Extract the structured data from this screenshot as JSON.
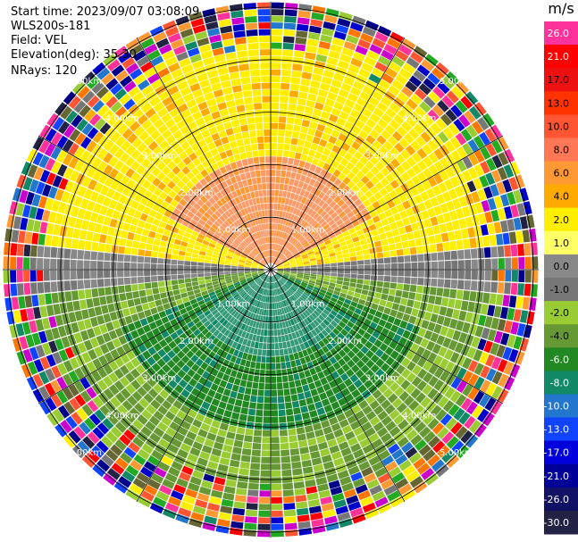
{
  "header": {
    "start_time": "Start time: 2023/09/07 03:08:09",
    "station": "WLS200s-181",
    "field": "Field: VEL",
    "elevation": "Elevation(deg): 35.30",
    "nrays": "NRays: 120"
  },
  "chart_data": {
    "type": "heatmap",
    "projection": "polar-ppi",
    "nrays": 120,
    "range_rings_km": [
      1,
      2,
      3,
      4,
      5
    ],
    "ring_labels": [
      "1.00km",
      "2.00km",
      "3.00km",
      "4.00km",
      "5.00km"
    ],
    "max_range_km": 5.0,
    "spokes_deg": [
      0,
      30,
      60,
      90,
      120,
      150,
      180,
      210,
      240,
      270,
      300,
      330
    ],
    "field": "VEL",
    "units": "m/s",
    "pattern": {
      "description_values_ms": {
        "north_inner": 6.0,
        "north_outer": 2.0,
        "east_west": 0.0,
        "south_inner": -8.0,
        "south_outer": -4.0
      },
      "valid_range_km": 3.9
    },
    "colorbar": {
      "title": "m/s",
      "ticks": [
        "26.0",
        "21.0",
        "17.0",
        "13.0",
        "10.0",
        "8.0",
        "6.0",
        "4.0",
        "2.0",
        "1.0",
        "0.0",
        "-1.0",
        "-2.0",
        "-4.0",
        "-6.0",
        "-8.0",
        "-10.0",
        "-13.0",
        "-17.0",
        "-21.0",
        "-26.0",
        "-30.0"
      ],
      "colors": [
        "#ff3399",
        "#ff0000",
        "#ee1111",
        "#ff3300",
        "#ff5533",
        "#ff7755",
        "#ff9933",
        "#ffaa00",
        "#ffee00",
        "#ffff66",
        "#888888",
        "#777777",
        "#99cc33",
        "#669933",
        "#228822",
        "#118866",
        "#2277cc",
        "#1144ff",
        "#0000dd",
        "#000099",
        "#111166",
        "#222244"
      ]
    }
  }
}
